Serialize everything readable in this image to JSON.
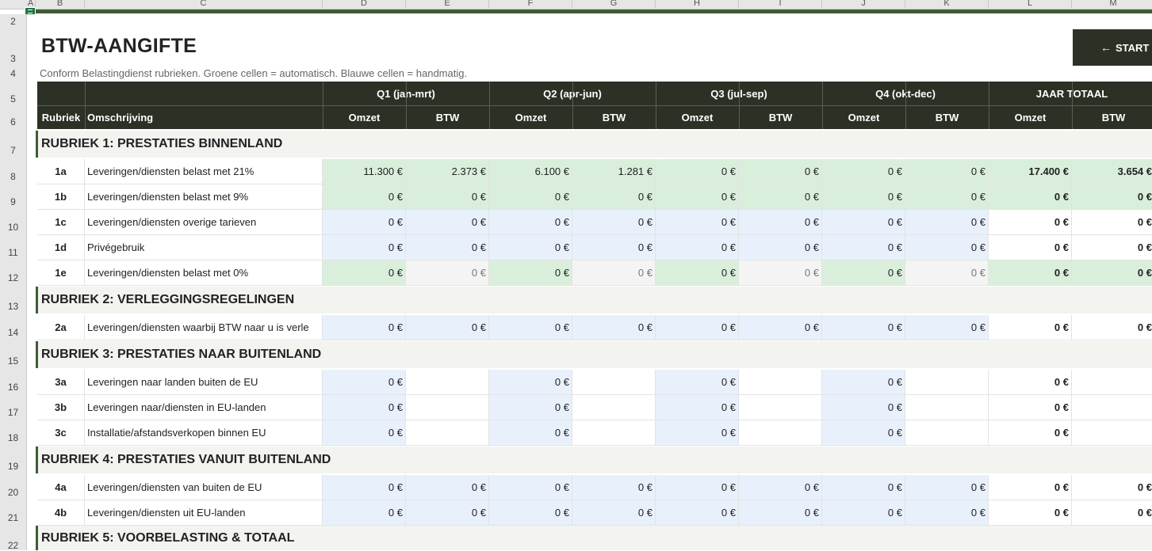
{
  "columns": [
    "A",
    "B",
    "C",
    "D",
    "E",
    "F",
    "G",
    "H",
    "I",
    "J",
    "K",
    "L",
    "M"
  ],
  "rows": [
    "2",
    "3",
    "4",
    "5",
    "6",
    "7",
    "8",
    "9",
    "10",
    "11",
    "12",
    "13",
    "14",
    "15",
    "16",
    "17",
    "18",
    "19",
    "20",
    "21",
    "22"
  ],
  "title": "BTW-AANGIFTE",
  "subtitle": "Conform Belastingdienst rubrieken. Groene cellen = automatisch. Blauwe cellen = handmatig.",
  "start_button": {
    "arrow": "←",
    "label": "START"
  },
  "quarters": [
    "Q1 (jan-mrt)",
    "Q2 (apr-jun)",
    "Q3 (jul-sep)",
    "Q4 (okt-dec)",
    "JAAR TOTAAL"
  ],
  "subheaders": {
    "rubriek": "Rubriek",
    "omschrijving": "Omschrijving",
    "omzet": "Omzet",
    "btw": "BTW"
  },
  "sections": [
    {
      "title": "RUBRIEK 1: PRESTATIES BINNENLAND",
      "rows": [
        {
          "code": "1a",
          "desc": "Leveringen/diensten belast met 21%",
          "values": [
            "11.300 €",
            "2.373 €",
            "6.100 €",
            "1.281 €",
            "0 €",
            "0 €",
            "0 €",
            "0 €",
            "17.400 €",
            "3.654 €"
          ]
        },
        {
          "code": "1b",
          "desc": "Leveringen/diensten belast met 9%",
          "values": [
            "0 €",
            "0 €",
            "0 €",
            "0 €",
            "0 €",
            "0 €",
            "0 €",
            "0 €",
            "0 €",
            "0 €"
          ]
        },
        {
          "code": "1c",
          "desc": "Leveringen/diensten overige tarieven",
          "values": [
            "0 €",
            "0 €",
            "0 €",
            "0 €",
            "0 €",
            "0 €",
            "0 €",
            "0 €",
            "0 €",
            "0 €"
          ]
        },
        {
          "code": "1d",
          "desc": "Privégebruik",
          "values": [
            "0 €",
            "0 €",
            "0 €",
            "0 €",
            "0 €",
            "0 €",
            "0 €",
            "0 €",
            "0 €",
            "0 €"
          ]
        },
        {
          "code": "1e",
          "desc": "Leveringen/diensten belast met 0%",
          "values": [
            "0 €",
            "0 €",
            "0 €",
            "0 €",
            "0 €",
            "0 €",
            "0 €",
            "0 €",
            "0 €",
            "0 €"
          ]
        }
      ]
    },
    {
      "title": "RUBRIEK 2: VERLEGGINGSREGELINGEN",
      "rows": [
        {
          "code": "2a",
          "desc": "Leveringen/diensten waarbij BTW naar u is verle",
          "values": [
            "0 €",
            "0 €",
            "0 €",
            "0 €",
            "0 €",
            "0 €",
            "0 €",
            "0 €",
            "0 €",
            "0 €"
          ]
        }
      ]
    },
    {
      "title": "RUBRIEK 3: PRESTATIES NAAR BUITENLAND",
      "rows": [
        {
          "code": "3a",
          "desc": "Leveringen naar landen buiten de EU",
          "values": [
            "0 €",
            "",
            "0 €",
            "",
            "0 €",
            "",
            "0 €",
            "",
            "0 €",
            ""
          ]
        },
        {
          "code": "3b",
          "desc": "Leveringen naar/diensten in EU-landen",
          "values": [
            "0 €",
            "",
            "0 €",
            "",
            "0 €",
            "",
            "0 €",
            "",
            "0 €",
            ""
          ]
        },
        {
          "code": "3c",
          "desc": "Installatie/afstandsverkopen binnen EU",
          "values": [
            "0 €",
            "",
            "0 €",
            "",
            "0 €",
            "",
            "0 €",
            "",
            "0 €",
            ""
          ]
        }
      ]
    },
    {
      "title": "RUBRIEK 4: PRESTATIES VANUIT BUITENLAND",
      "rows": [
        {
          "code": "4a",
          "desc": "Leveringen/diensten van buiten de EU",
          "values": [
            "0 €",
            "0 €",
            "0 €",
            "0 €",
            "0 €",
            "0 €",
            "0 €",
            "0 €",
            "0 €",
            "0 €"
          ]
        },
        {
          "code": "4b",
          "desc": "Leveringen/diensten uit EU-landen",
          "values": [
            "0 €",
            "0 €",
            "0 €",
            "0 €",
            "0 €",
            "0 €",
            "0 €",
            "0 €",
            "0 €",
            "0 €"
          ]
        }
      ]
    },
    {
      "title": "RUBRIEK 5: VOORBELASTING & TOTAAL",
      "rows": []
    }
  ]
}
